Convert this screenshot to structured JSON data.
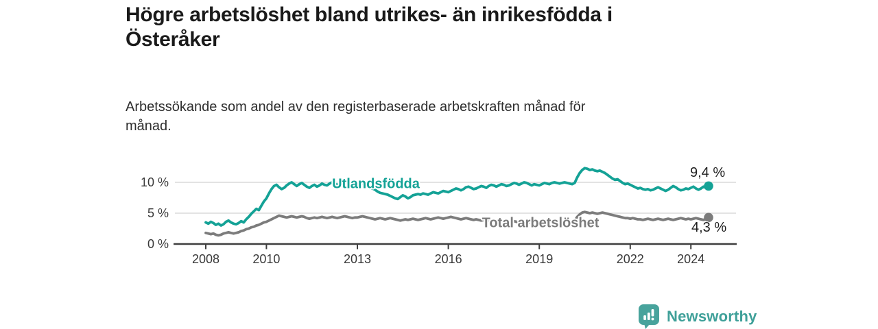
{
  "title": "Högre arbetslöshet bland utrikes- än inrikesfödda i\nÖsteråker",
  "subtitle": "Arbetssökande som andel av den registerbaserade arbetskraften månad för\nmånad.",
  "footer": {
    "brand": "Newsworthy"
  },
  "colors": {
    "series_foreign_born": "#14A296",
    "series_total": "#7C7C7C",
    "gridline": "#d2d2d2",
    "axis": "#3f3f3f",
    "axis_text": "#3a3a3a",
    "brand_teal": "#48A39C"
  },
  "chart_data": {
    "type": "line",
    "title": "Högre arbetslöshet bland utrikes- än inrikesfödda i Österåker",
    "xlabel": "",
    "ylabel": "Arbetssökande som andel av den registerbaserade arbetskraften",
    "frequency": "monthly",
    "start_year": 2008,
    "end_month": "2024-08",
    "ylim": [
      0,
      13
    ],
    "grid": true,
    "legend_position": "inline-on-line",
    "y_ticks": [
      {
        "value": 0,
        "label": "0 %"
      },
      {
        "value": 5,
        "label": "5 %"
      },
      {
        "value": 10,
        "label": "10 %"
      }
    ],
    "x_ticks": [
      {
        "value": 2008,
        "label": "2008"
      },
      {
        "value": 2010,
        "label": "2010"
      },
      {
        "value": 2013,
        "label": "2013"
      },
      {
        "value": 2016,
        "label": "2016"
      },
      {
        "value": 2019,
        "label": "2019"
      },
      {
        "value": 2022,
        "label": "2022"
      },
      {
        "value": 2024,
        "label": "2024"
      }
    ],
    "series": [
      {
        "name": "Utlandsfödda",
        "color": "#14A296",
        "end_label": "9,4 %",
        "last_value": 9.4,
        "values": [
          3.5,
          3.3,
          3.6,
          3.4,
          3.1,
          3.3,
          3.0,
          3.2,
          3.6,
          3.8,
          3.5,
          3.3,
          3.2,
          3.4,
          3.7,
          3.5,
          4.0,
          4.4,
          4.9,
          5.3,
          5.7,
          5.5,
          6.2,
          6.9,
          7.4,
          8.2,
          8.9,
          9.4,
          9.6,
          9.2,
          8.9,
          9.1,
          9.5,
          9.8,
          10.0,
          9.7,
          9.4,
          9.7,
          9.9,
          9.6,
          9.3,
          9.1,
          9.4,
          9.6,
          9.3,
          9.5,
          9.8,
          9.6,
          9.5,
          9.8,
          10.0,
          9.8,
          9.6,
          9.8,
          9.9,
          9.7,
          9.5,
          9.7,
          9.8,
          9.6,
          9.7,
          9.9,
          9.8,
          9.6,
          9.4,
          9.2,
          9.0,
          8.8,
          8.5,
          8.3,
          8.2,
          8.1,
          8.0,
          7.8,
          7.6,
          7.4,
          7.3,
          7.6,
          7.9,
          7.7,
          7.4,
          7.6,
          7.9,
          8.0,
          8.1,
          8.0,
          8.2,
          8.1,
          8.0,
          8.2,
          8.4,
          8.3,
          8.2,
          8.4,
          8.6,
          8.5,
          8.4,
          8.6,
          8.8,
          9.0,
          8.9,
          8.7,
          8.9,
          9.2,
          9.3,
          9.1,
          8.9,
          9.0,
          9.2,
          9.4,
          9.3,
          9.1,
          9.4,
          9.6,
          9.5,
          9.3,
          9.5,
          9.7,
          9.6,
          9.4,
          9.5,
          9.7,
          9.9,
          9.8,
          9.6,
          9.8,
          10.0,
          9.9,
          9.7,
          9.5,
          9.7,
          9.6,
          9.5,
          9.7,
          9.9,
          9.8,
          9.7,
          9.9,
          10.0,
          9.9,
          9.8,
          9.9,
          10.0,
          9.9,
          9.8,
          9.7,
          9.9,
          10.8,
          11.5,
          12.0,
          12.3,
          12.2,
          12.0,
          12.1,
          11.9,
          11.8,
          11.9,
          11.7,
          11.5,
          11.2,
          10.9,
          10.6,
          10.4,
          10.5,
          10.2,
          9.9,
          9.7,
          9.8,
          9.6,
          9.4,
          9.2,
          9.0,
          9.1,
          8.9,
          8.8,
          8.9,
          8.7,
          8.8,
          9.0,
          9.2,
          9.0,
          8.8,
          8.6,
          8.8,
          9.1,
          9.4,
          9.2,
          8.9,
          8.7,
          8.8,
          9.0,
          8.9,
          9.1,
          9.3,
          9.0,
          8.8,
          9.0,
          9.3,
          9.1,
          9.4
        ]
      },
      {
        "name": "Total arbetslöshet",
        "color": "#7C7C7C",
        "end_label": "4,3 %",
        "last_value": 4.3,
        "values": [
          1.8,
          1.7,
          1.6,
          1.7,
          1.5,
          1.4,
          1.5,
          1.7,
          1.8,
          1.9,
          1.8,
          1.7,
          1.8,
          1.9,
          2.1,
          2.2,
          2.4,
          2.5,
          2.7,
          2.8,
          3.0,
          3.1,
          3.3,
          3.5,
          3.6,
          3.8,
          4.0,
          4.2,
          4.4,
          4.6,
          4.5,
          4.4,
          4.3,
          4.4,
          4.5,
          4.4,
          4.3,
          4.4,
          4.5,
          4.4,
          4.2,
          4.1,
          4.2,
          4.3,
          4.2,
          4.3,
          4.4,
          4.3,
          4.2,
          4.3,
          4.4,
          4.3,
          4.2,
          4.3,
          4.4,
          4.5,
          4.4,
          4.3,
          4.2,
          4.3,
          4.3,
          4.4,
          4.5,
          4.4,
          4.3,
          4.2,
          4.1,
          4.0,
          4.1,
          4.2,
          4.1,
          4.0,
          4.1,
          4.2,
          4.1,
          4.0,
          3.9,
          3.8,
          3.9,
          4.0,
          3.9,
          4.0,
          4.1,
          4.0,
          3.9,
          4.0,
          4.1,
          4.2,
          4.1,
          4.0,
          4.1,
          4.2,
          4.3,
          4.2,
          4.1,
          4.2,
          4.3,
          4.4,
          4.3,
          4.2,
          4.1,
          4.0,
          4.1,
          4.2,
          4.1,
          4.0,
          3.9,
          4.0,
          3.9,
          3.8,
          3.9,
          4.0,
          3.9,
          3.8,
          3.7,
          3.8,
          3.9,
          3.8,
          3.7,
          3.6,
          3.7,
          3.8,
          3.7,
          3.6,
          3.5,
          3.6,
          3.7,
          3.6,
          3.5,
          3.6,
          3.7,
          3.6,
          3.5,
          3.6,
          3.7,
          3.6,
          3.5,
          3.6,
          3.7,
          3.8,
          3.7,
          3.6,
          3.7,
          3.8,
          3.7,
          3.6,
          3.8,
          4.4,
          4.8,
          5.1,
          5.2,
          5.1,
          5.0,
          5.1,
          5.0,
          4.9,
          5.0,
          5.1,
          5.0,
          4.9,
          4.8,
          4.7,
          4.6,
          4.5,
          4.4,
          4.3,
          4.2,
          4.2,
          4.1,
          4.2,
          4.1,
          4.0,
          4.0,
          3.9,
          4.0,
          4.1,
          4.0,
          3.9,
          4.0,
          4.1,
          4.0,
          3.9,
          4.0,
          4.1,
          4.0,
          3.9,
          4.0,
          4.1,
          4.2,
          4.1,
          4.0,
          4.1,
          4.0,
          4.1,
          4.2,
          4.1,
          4.0,
          3.9,
          4.1,
          4.3
        ]
      }
    ]
  }
}
